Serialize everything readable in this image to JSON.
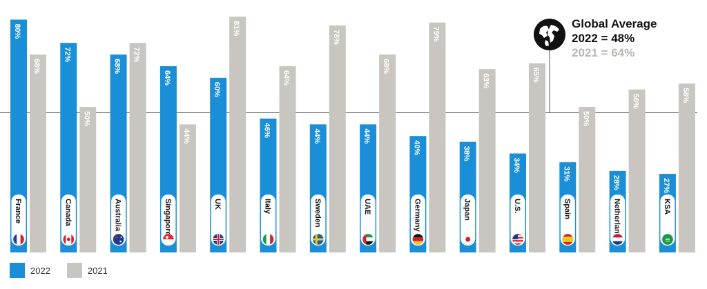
{
  "chart_data": {
    "type": "bar",
    "categories": [
      "France",
      "Canada",
      "Australia",
      "Singapore",
      "UK",
      "Italy",
      "Sweden",
      "UAE",
      "Germany",
      "Japan",
      "U.S.",
      "Spain",
      "Netherlands",
      "KSA"
    ],
    "series": [
      {
        "name": "2022",
        "color": "#1a8fd8",
        "values": [
          80,
          72,
          68,
          64,
          60,
          46,
          44,
          44,
          40,
          38,
          34,
          31,
          28,
          27
        ],
        "labels": [
          "80%",
          "72%",
          "68%",
          "64%",
          "60%",
          "46%",
          "44%",
          "44%",
          "40%",
          "38%",
          "34%",
          "31%",
          "28%",
          "27%"
        ]
      },
      {
        "name": "2021",
        "color": "#c9c6c1",
        "values": [
          68,
          50,
          72,
          44,
          81,
          64,
          78,
          68,
          79,
          63,
          65,
          50,
          56,
          58
        ],
        "labels": [
          "68%",
          "50%",
          "72%",
          "44%",
          "81%",
          "64%",
          "78%",
          "68%",
          "79%",
          "63%",
          "65%",
          "50%",
          "56%",
          "58%"
        ]
      }
    ],
    "ylim": [
      0,
      82
    ],
    "reference_line": {
      "value": 48
    },
    "flags": [
      "france-flag-icon",
      "canada-flag-icon",
      "australia-flag-icon",
      "singapore-flag-icon",
      "uk-flag-icon",
      "italy-flag-icon",
      "sweden-flag-icon",
      "uae-flag-icon",
      "germany-flag-icon",
      "japan-flag-icon",
      "us-flag-icon",
      "spain-flag-icon",
      "netherlands-flag-icon",
      "ksa-flag-icon"
    ],
    "callout": {
      "title": "Global Average",
      "line_2022": "2022 = 48%",
      "line_2021": "2021 = 64%",
      "icon": "globe-icon"
    },
    "legend": [
      {
        "label": "2022",
        "color": "#1a8fd8"
      },
      {
        "label": "2021",
        "color": "#c9c6c1"
      }
    ]
  }
}
